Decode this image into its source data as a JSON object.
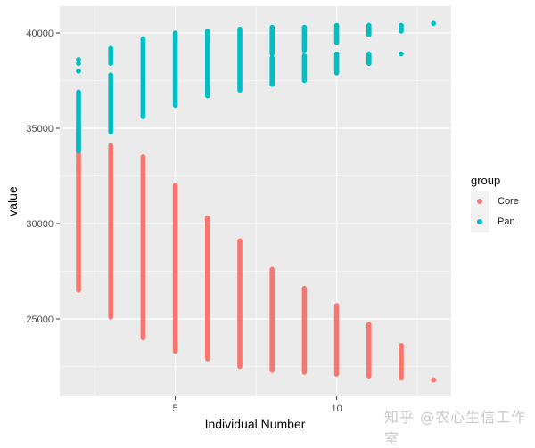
{
  "chart_data": {
    "type": "scatter",
    "title": "",
    "xlabel": "Individual Number",
    "ylabel": "value",
    "x_ticks": [
      5,
      10
    ],
    "y_ticks": [
      25000,
      30000,
      35000,
      40000
    ],
    "xlim": [
      1.5,
      13.5
    ],
    "ylim": [
      21200,
      41400
    ],
    "grid": true,
    "legend": {
      "title": "group",
      "position": "right",
      "entries": [
        {
          "name": "Core",
          "color": "#F8766D"
        },
        {
          "name": "Pan",
          "color": "#00BFC4"
        }
      ]
    },
    "series": [
      {
        "name": "Core",
        "color": "#F8766D",
        "ranges": [
          {
            "x": 2,
            "min": 26500,
            "max": 35100
          },
          {
            "x": 3,
            "min": 25100,
            "max": 34100
          },
          {
            "x": 4,
            "min": 24000,
            "max": 33500
          },
          {
            "x": 5,
            "min": 23300,
            "max": 32000
          },
          {
            "x": 6,
            "min": 22900,
            "max": 30300
          },
          {
            "x": 7,
            "min": 22500,
            "max": 29100
          },
          {
            "x": 8,
            "min": 22300,
            "max": 27600
          },
          {
            "x": 9,
            "min": 22200,
            "max": 26600
          },
          {
            "x": 10,
            "min": 22100,
            "max": 25700
          },
          {
            "x": 11,
            "min": 22000,
            "max": 24700
          },
          {
            "x": 12,
            "min": 21900,
            "max": 23600
          },
          {
            "x": 13,
            "min": 21800,
            "max": 21800
          }
        ],
        "outliers": [
          {
            "x": 2,
            "y": 33000
          },
          {
            "x": 2,
            "y": 34000
          },
          {
            "x": 3,
            "y": 33600
          },
          {
            "x": 3,
            "y": 32800
          },
          {
            "x": 4,
            "y": 33500
          },
          {
            "x": 4,
            "y": 32600
          },
          {
            "x": 5,
            "y": 32000
          },
          {
            "x": 6,
            "y": 30300
          },
          {
            "x": 11,
            "y": 24700
          },
          {
            "x": 12,
            "y": 23600
          },
          {
            "x": 12,
            "y": 22800
          },
          {
            "x": 13,
            "y": 21800
          }
        ]
      },
      {
        "name": "Pan",
        "color": "#00BFC4",
        "ranges": [
          {
            "x": 2,
            "min": 33800,
            "max": 36900
          },
          {
            "x": 3,
            "min": 34800,
            "max": 37800
          },
          {
            "x": 3,
            "min": 38400,
            "max": 39200
          },
          {
            "x": 4,
            "min": 35600,
            "max": 39700
          },
          {
            "x": 5,
            "min": 36200,
            "max": 40000
          },
          {
            "x": 6,
            "min": 36700,
            "max": 40100
          },
          {
            "x": 7,
            "min": 37000,
            "max": 40200
          },
          {
            "x": 8,
            "min": 37300,
            "max": 38700
          },
          {
            "x": 8,
            "min": 38900,
            "max": 40300
          },
          {
            "x": 9,
            "min": 37500,
            "max": 38800
          },
          {
            "x": 9,
            "min": 39100,
            "max": 40300
          },
          {
            "x": 10,
            "min": 37900,
            "max": 38900
          },
          {
            "x": 10,
            "min": 39500,
            "max": 40400
          },
          {
            "x": 11,
            "min": 38400,
            "max": 38900
          },
          {
            "x": 11,
            "min": 39900,
            "max": 40400
          },
          {
            "x": 12,
            "min": 40100,
            "max": 40400
          }
        ],
        "outliers": [
          {
            "x": 2,
            "y": 38600
          },
          {
            "x": 2,
            "y": 38400
          },
          {
            "x": 2,
            "y": 38000
          },
          {
            "x": 12,
            "y": 38900
          },
          {
            "x": 13,
            "y": 40500
          }
        ]
      }
    ]
  },
  "watermark": "知乎 @农心生信工作室"
}
